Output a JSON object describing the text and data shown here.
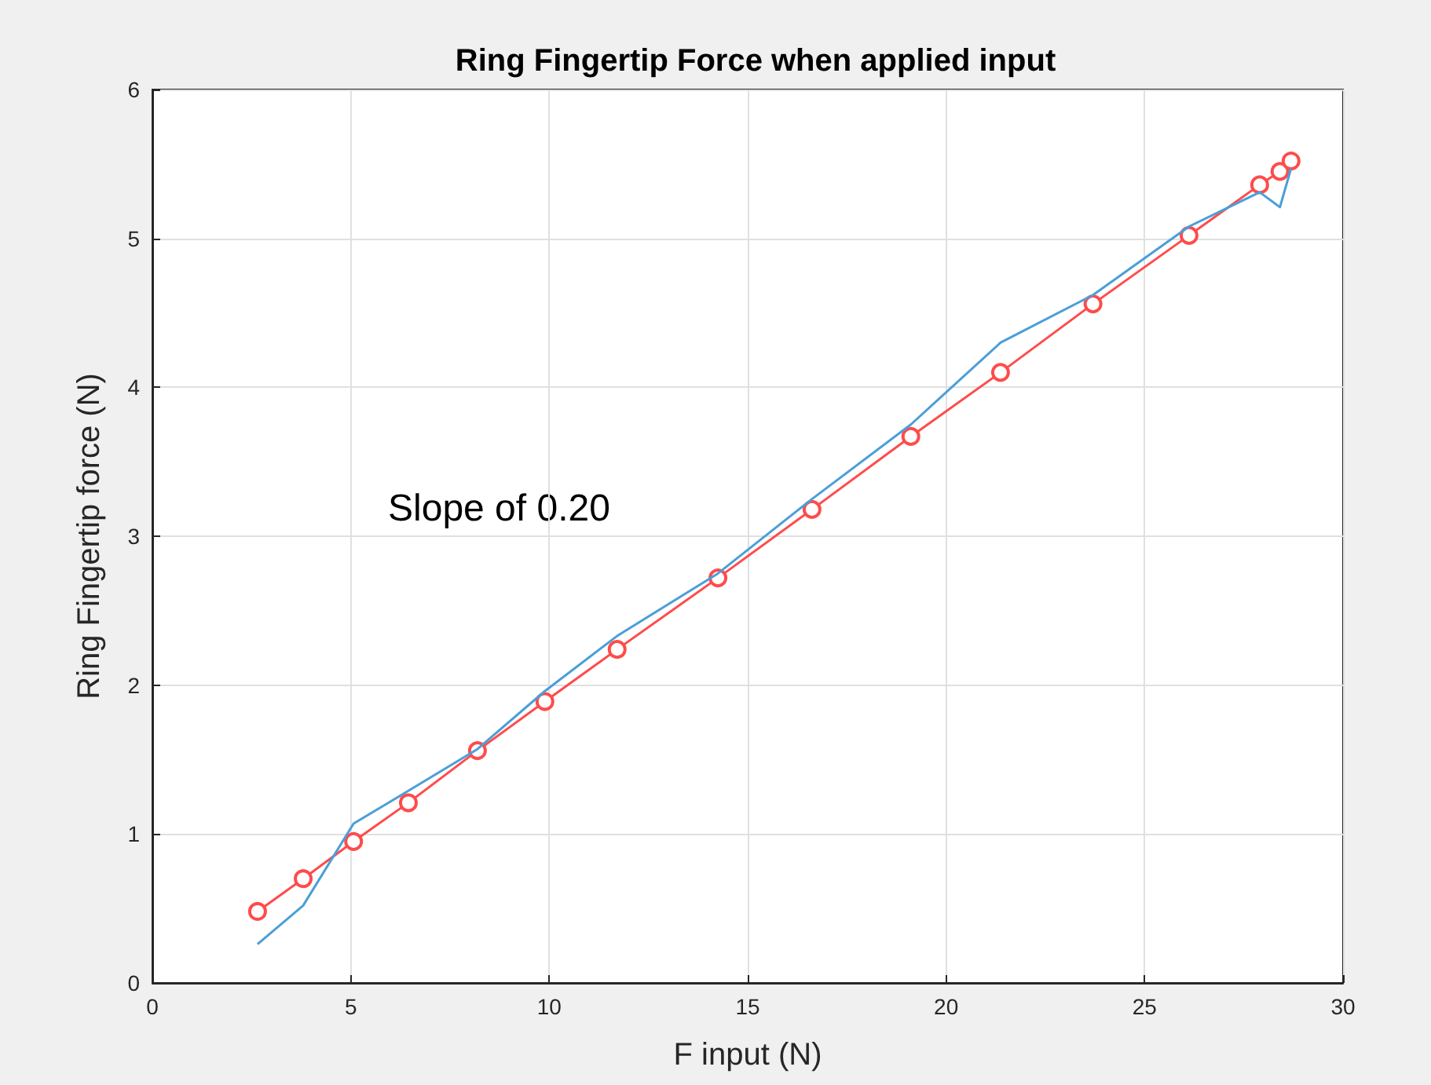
{
  "chart_data": {
    "type": "line",
    "title": "Ring Fingertip Force when applied input",
    "xlabel": "F input (N)",
    "ylabel": "Ring Fingertip force (N)",
    "annotations": [
      "Slope of 0.20"
    ],
    "series": [
      {
        "color": "#4a9fd8",
        "marker": "none",
        "x": [
          2.65,
          3.8,
          5.07,
          6.45,
          8.19,
          9.89,
          11.71,
          14.25,
          16.62,
          19.11,
          21.37,
          23.7,
          26.12,
          27.9,
          28.41,
          28.69
        ],
        "values": [
          0.26,
          0.52,
          1.07,
          1.29,
          1.57,
          1.96,
          2.33,
          2.75,
          3.25,
          3.75,
          4.3,
          4.62,
          5.08,
          5.31,
          5.21,
          5.47
        ]
      },
      {
        "color": "#ff4b4b",
        "marker": "circle",
        "x": [
          2.65,
          3.8,
          5.07,
          6.45,
          8.19,
          9.89,
          11.71,
          14.25,
          16.62,
          19.11,
          21.37,
          23.7,
          26.12,
          27.9,
          28.41,
          28.69
        ],
        "values": [
          0.48,
          0.7,
          0.95,
          1.21,
          1.56,
          1.89,
          2.24,
          2.72,
          3.18,
          3.67,
          4.1,
          4.56,
          5.02,
          5.36,
          5.45,
          5.52
        ]
      }
    ],
    "xlim": [
      0,
      30
    ],
    "xticks": [
      0,
      5,
      10,
      15,
      20,
      25,
      30
    ],
    "ylim": [
      0,
      6
    ],
    "yticks": [
      0,
      1,
      2,
      3,
      4,
      5,
      6
    ],
    "grid": true,
    "line_style": "solid"
  }
}
